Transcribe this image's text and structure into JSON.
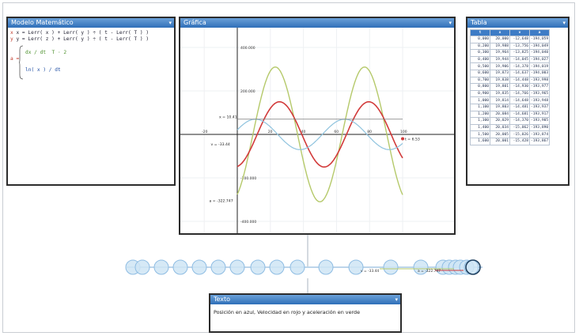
{
  "panels": {
    "model": {
      "title": "Modelo Matemático"
    },
    "graph": {
      "title": "Gráfica"
    },
    "table": {
      "title": "Tabla"
    },
    "notes": {
      "title": "Texto",
      "text": "Posición en azul, Velocidad en rojo y aceleración en verde"
    }
  },
  "model": {
    "line1": "x = Lerr( x ) + Lerr( y ) ÷ ( t - Lerr( T ) )",
    "line2": "y = Lerr( z ) + Lerr( y ) ÷ ( t - Lerr( T ) )",
    "case1": "dx / dt  T · 2",
    "case2": "ln( x ) / dt",
    "lhs": "a ="
  },
  "graph": {
    "y_ticks": [
      {
        "label": "400.000",
        "y": 400
      },
      {
        "label": "200.000",
        "y": 200
      },
      {
        "label": "-200.000",
        "y": -200
      },
      {
        "label": "-400.000",
        "y": -400
      }
    ],
    "x_ticks": [
      {
        "label": "-20",
        "x": -20
      },
      {
        "label": "20",
        "x": 20
      },
      {
        "label": "40",
        "x": 40
      },
      {
        "label": "60",
        "x": 60
      },
      {
        "label": "80",
        "x": 80
      },
      {
        "label": "100",
        "x": 100
      }
    ],
    "annotations": [
      {
        "label": "x = 10.41",
        "series": "position"
      },
      {
        "label": "v = -33.44",
        "series": "velocity"
      },
      {
        "label": "a = -322.747",
        "series": "acceleration"
      },
      {
        "label": "t = 6.53",
        "series": "time"
      }
    ]
  },
  "colors": {
    "position": "#8fc3de",
    "velocity": "#d23a3a",
    "acceleration": "#b5c96a",
    "title_bar": "#2f6fb8"
  },
  "table": {
    "headers": [
      "t",
      "x",
      "v",
      "a"
    ],
    "rows": [
      [
        "0,000",
        "20,000",
        "-12,648",
        "-194,059"
      ],
      [
        "0,200",
        "19,988",
        "-13,756",
        "-194,049"
      ],
      [
        "0,300",
        "19,964",
        "-13,825",
        "-194,040"
      ],
      [
        "0,400",
        "19,944",
        "-14,045",
        "-194,027"
      ],
      [
        "0,500",
        "19,906",
        "-14,378",
        "-194,019"
      ],
      [
        "0,600",
        "19,873",
        "-14,637",
        "-194,003"
      ],
      [
        "0,700",
        "19,838",
        "-14,448",
        "-193,998"
      ],
      [
        "0,800",
        "19,801",
        "-14,930",
        "-193,977"
      ],
      [
        "0,900",
        "19,835",
        "-14,766",
        "-193,965"
      ],
      [
        "1,000",
        "19,814",
        "-14,648",
        "-193,948"
      ],
      [
        "1,100",
        "19,803",
        "-14,481",
        "-193,937"
      ],
      [
        "1,200",
        "20,084",
        "-14,681",
        "-193,917"
      ],
      [
        "1,300",
        "20,029",
        "-14,370",
        "-193,905"
      ],
      [
        "1,400",
        "20,034",
        "-15,062",
        "-193,890"
      ],
      [
        "1,500",
        "20,005",
        "-15,026",
        "-193,874"
      ],
      [
        "1,600",
        "20,001",
        "-15,428",
        "-193,867"
      ]
    ]
  },
  "timeline": {
    "labels": [
      {
        "text": "v = -33.44"
      },
      {
        "text": "a = -322.747"
      }
    ]
  }
}
